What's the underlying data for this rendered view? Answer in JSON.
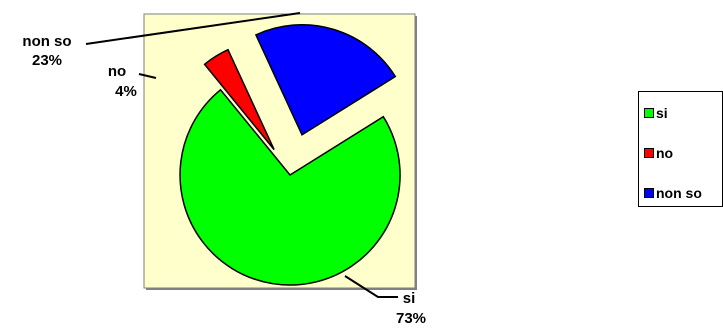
{
  "chart_data": {
    "type": "pie",
    "exploded": true,
    "slices": [
      {
        "label": "si",
        "value": 73,
        "percent_label": "73%",
        "color": "#00ff00"
      },
      {
        "label": "no",
        "value": 4,
        "percent_label": "4%",
        "color": "#ff0000"
      },
      {
        "label": "non so",
        "value": 23,
        "percent_label": "23%",
        "color": "#0000ff"
      }
    ],
    "plot_background": "#ffffcc",
    "legend_position": "right"
  }
}
